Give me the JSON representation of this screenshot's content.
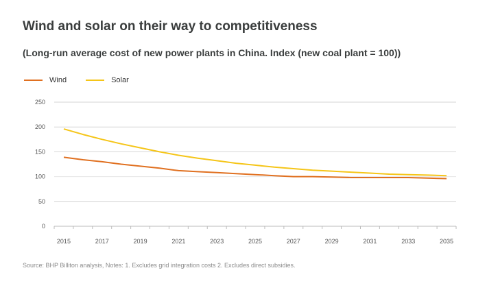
{
  "chart_data": {
    "type": "line",
    "title": "Wind and solar on their way to competitiveness",
    "subtitle": "(Long-run average cost of new power plants in China. Index (new coal plant = 100))",
    "xlabel": "",
    "ylabel": "",
    "x": [
      2015,
      2016,
      2017,
      2018,
      2019,
      2020,
      2021,
      2022,
      2023,
      2024,
      2025,
      2026,
      2027,
      2028,
      2029,
      2030,
      2031,
      2032,
      2033,
      2034,
      2035
    ],
    "xtick_labels": [
      "2015",
      "2017",
      "2019",
      "2021",
      "2023",
      "2025",
      "2027",
      "2029",
      "2031",
      "2033",
      "2035"
    ],
    "yticks": [
      0,
      50,
      100,
      150,
      200,
      250
    ],
    "ylim": [
      0,
      250
    ],
    "grid": "horizontal",
    "legend_placement": "top-left",
    "series": [
      {
        "name": "Wind",
        "color": "#e07020",
        "values": [
          139,
          134,
          130,
          125,
          121,
          117,
          112,
          110,
          108,
          106,
          104,
          102,
          100,
          100,
          99,
          98,
          98,
          98,
          98,
          97,
          96
        ]
      },
      {
        "name": "Solar",
        "color": "#f5c518",
        "values": [
          196,
          185,
          175,
          166,
          158,
          150,
          143,
          137,
          132,
          127,
          123,
          119,
          116,
          113,
          111,
          109,
          107,
          105,
          104,
          103,
          102
        ]
      }
    ]
  },
  "source": "Source: BHP Billiton analysis, Notes: 1. Excludes grid integration costs 2. Excludes direct subsidies."
}
